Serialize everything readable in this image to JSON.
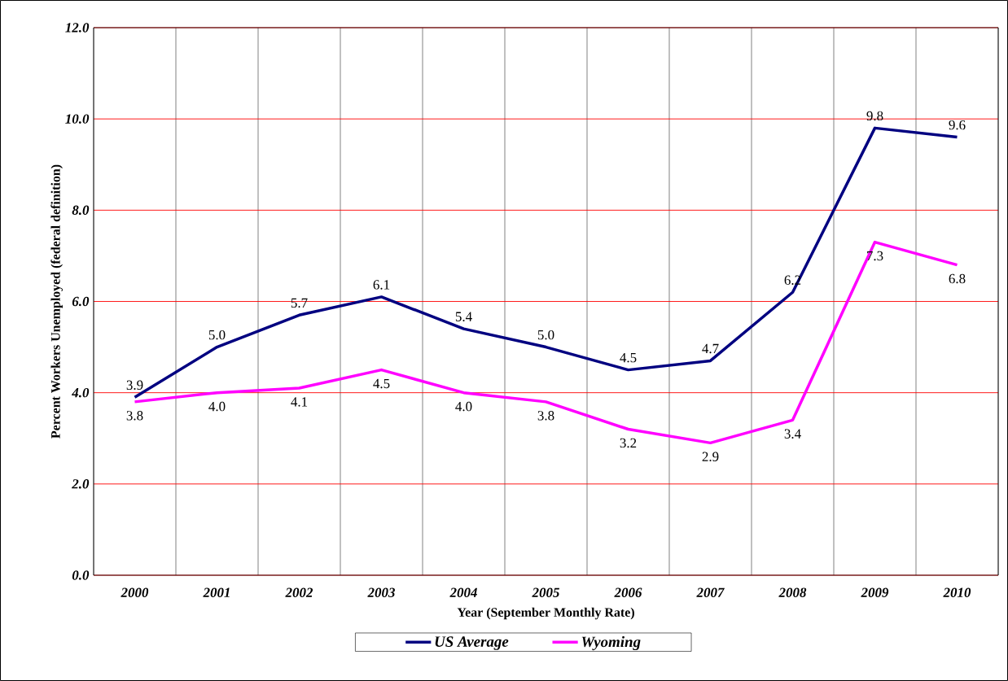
{
  "chart_data": {
    "type": "line",
    "xlabel": "Year (September Monthly Rate)",
    "ylabel": "Percent Workers Unemployed (federal definition)",
    "categories": [
      "2000",
      "2001",
      "2002",
      "2003",
      "2004",
      "2005",
      "2006",
      "2007",
      "2008",
      "2009",
      "2010"
    ],
    "series": [
      {
        "name": "US Average",
        "color": "#000080",
        "values": [
          3.9,
          5.0,
          5.7,
          6.1,
          5.4,
          5.0,
          4.5,
          4.7,
          6.2,
          9.8,
          9.6
        ],
        "value_labels": [
          "3.9",
          "5.0",
          "5.7",
          "6.1",
          "5.4",
          "5.0",
          "4.5",
          "4.7",
          "6.2",
          "9.8",
          "9.6"
        ]
      },
      {
        "name": "Wyoming",
        "color": "#ff00ff",
        "values": [
          3.8,
          4.0,
          4.1,
          4.5,
          4.0,
          3.8,
          3.2,
          2.9,
          3.4,
          7.3,
          6.8
        ],
        "value_labels": [
          "3.8",
          "4.0",
          "4.1",
          "4.5",
          "4.0",
          "3.8",
          "3.2",
          "2.9",
          "3.4",
          "7.3",
          "6.8"
        ]
      }
    ],
    "ylim": [
      0,
      12
    ],
    "yticks": [
      {
        "value": 0,
        "label": "0.0"
      },
      {
        "value": 2,
        "label": "2.0"
      },
      {
        "value": 4,
        "label": "4.0"
      },
      {
        "value": 6,
        "label": "6.0"
      },
      {
        "value": 8,
        "label": "8.0"
      },
      {
        "value": 10,
        "label": "10.0"
      },
      {
        "value": 12,
        "label": "12.0"
      }
    ],
    "grid": true,
    "legend": "bottom"
  }
}
